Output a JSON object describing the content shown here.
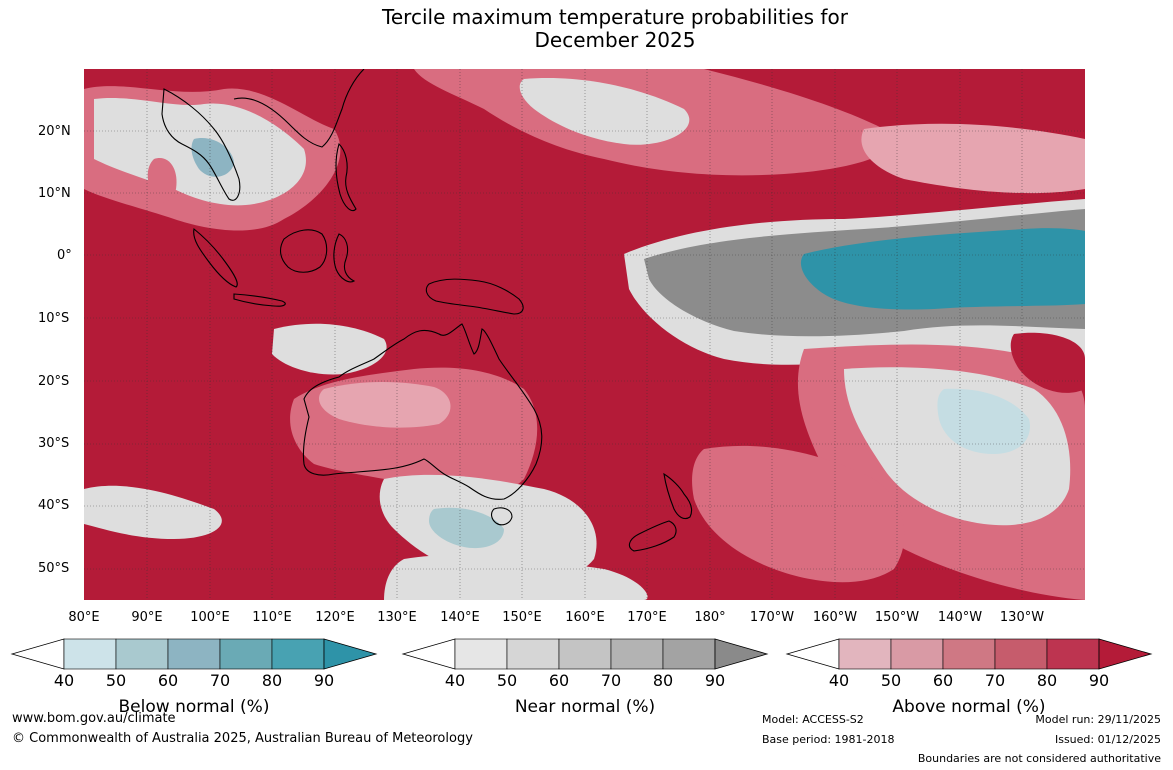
{
  "title": {
    "line1": "Tercile maximum temperature probabilities for",
    "line2": "December 2025"
  },
  "map": {
    "lat_labels": [
      "20°N",
      "10°N",
      "0°",
      "10°S",
      "20°S",
      "30°S",
      "40°S",
      "50°S"
    ],
    "lon_labels": [
      "80°E",
      "90°E",
      "100°E",
      "110°E",
      "120°E",
      "130°E",
      "140°E",
      "150°E",
      "160°E",
      "170°E",
      "180°",
      "170°W",
      "160°W",
      "150°W",
      "140°W",
      "130°W"
    ],
    "colors": {
      "above_strong": "#b41b38",
      "above_mid": "#d96d80",
      "above_light": "#e6a5b0",
      "near_light": "#dedede",
      "near_dark": "#8c8c8c",
      "below_light": "#c5dde3",
      "below_strong": "#2e93a8",
      "coast": "#000000"
    }
  },
  "legends": [
    {
      "name": "Below normal (%)",
      "ticks": [
        "40",
        "50",
        "60",
        "70",
        "80",
        "90"
      ],
      "colors": [
        "#ffffff",
        "#cde3e9",
        "#a9c9cf",
        "#8db4c2",
        "#6aaab5",
        "#48a2b2",
        "#2e93a8"
      ]
    },
    {
      "name": "Near normal (%)",
      "ticks": [
        "40",
        "50",
        "60",
        "70",
        "80",
        "90"
      ],
      "colors": [
        "#ffffff",
        "#e6e6e6",
        "#d6d6d6",
        "#c4c4c4",
        "#b3b3b3",
        "#a3a3a3",
        "#8a8a8a"
      ]
    },
    {
      "name": "Above normal (%)",
      "ticks": [
        "40",
        "50",
        "60",
        "70",
        "80",
        "90"
      ],
      "colors": [
        "#ffffff",
        "#e2b5be",
        "#d99aa5",
        "#cf7884",
        "#c65c6c",
        "#bd3450",
        "#b41b38"
      ]
    }
  ],
  "footer": {
    "url": "www.bom.gov.au/climate",
    "copyright": "© Commonwealth of Australia 2025, Australian Bureau of Meteorology",
    "model": "Model: ACCESS-S2",
    "base_period": "Base period: 1981-2018",
    "model_run": "Model run: 29/11/2025",
    "issued": "Issued: 01/12/2025",
    "disclaimer": "Boundaries are not considered authoritative"
  }
}
